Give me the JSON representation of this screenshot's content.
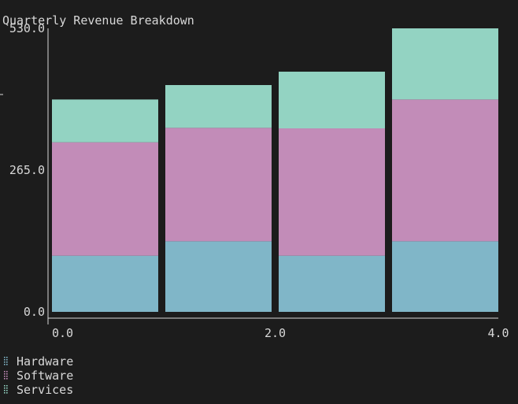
{
  "chart_data": {
    "type": "bar",
    "stacked": true,
    "title": "Quarterly Revenue Breakdown",
    "x": [
      0,
      1,
      2,
      3
    ],
    "x_tick_labels": [
      "0.0",
      "2.0",
      "4.0"
    ],
    "x_tick_values": [
      0,
      2,
      4
    ],
    "xlim": [
      0,
      4
    ],
    "y_tick_labels": [
      "0.0",
      "265.0",
      "530.0"
    ],
    "y_tick_values": [
      0,
      265,
      530
    ],
    "ylim": [
      0,
      530
    ],
    "grid": false,
    "legend_position": "bottom-left",
    "series": [
      {
        "name": "Hardware",
        "values": [
          105,
          132,
          105,
          132
        ],
        "color": "#80b6c8"
      },
      {
        "name": "Software",
        "values": [
          212,
          212,
          238,
          265
        ],
        "color": "#c28cb8"
      },
      {
        "name": "Services",
        "values": [
          80,
          80,
          106,
          133
        ],
        "color": "#93d3c2"
      }
    ]
  }
}
